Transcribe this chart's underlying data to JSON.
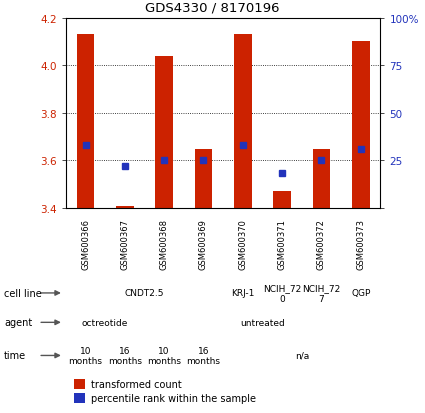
{
  "title": "GDS4330 / 8170196",
  "samples": [
    "GSM600366",
    "GSM600367",
    "GSM600368",
    "GSM600369",
    "GSM600370",
    "GSM600371",
    "GSM600372",
    "GSM600373"
  ],
  "bar_values": [
    4.13,
    3.41,
    4.04,
    3.65,
    4.13,
    3.47,
    3.65,
    4.1
  ],
  "bar_base": 3.4,
  "percentile_values": [
    3.665,
    3.575,
    3.603,
    3.603,
    3.665,
    3.548,
    3.603,
    3.648
  ],
  "ylim": [
    3.4,
    4.2
  ],
  "yticks_left": [
    3.4,
    3.6,
    3.8,
    4.0,
    4.2
  ],
  "yticks_right": [
    0,
    25,
    50,
    75,
    100
  ],
  "bar_color": "#cc2200",
  "percentile_color": "#2233bb",
  "cell_line_groups": [
    {
      "label": "CNDT2.5",
      "span": [
        0,
        4
      ],
      "color": "#ddffdd"
    },
    {
      "label": "KRJ-1",
      "span": [
        4,
        5
      ],
      "color": "#99ee99"
    },
    {
      "label": "NCIH_72\n0",
      "span": [
        5,
        6
      ],
      "color": "#99ee99"
    },
    {
      "label": "NCIH_72\n7",
      "span": [
        6,
        7
      ],
      "color": "#99ee99"
    },
    {
      "label": "QGP",
      "span": [
        7,
        8
      ],
      "color": "#33cc33"
    }
  ],
  "agent_groups": [
    {
      "label": "octreotide",
      "span": [
        0,
        2
      ],
      "color": "#bbbbee"
    },
    {
      "label": "untreated",
      "span": [
        2,
        8
      ],
      "color": "#7777cc"
    }
  ],
  "time_groups": [
    {
      "label": "10\nmonths",
      "span": [
        0,
        1
      ],
      "color": "#dd8888"
    },
    {
      "label": "16\nmonths",
      "span": [
        1,
        2
      ],
      "color": "#dd8888"
    },
    {
      "label": "10\nmonths",
      "span": [
        2,
        3
      ],
      "color": "#ddaaaa"
    },
    {
      "label": "16\nmonths",
      "span": [
        3,
        4
      ],
      "color": "#ddaaaa"
    },
    {
      "label": "n/a",
      "span": [
        4,
        8
      ],
      "color": "#f4cccc"
    }
  ],
  "sample_box_color": "#cccccc",
  "row_labels": [
    "cell line",
    "agent",
    "time"
  ],
  "legend_bar_label": "transformed count",
  "legend_pct_label": "percentile rank within the sample",
  "bg_color": "#ffffff",
  "ylabel_left_color": "#cc2200",
  "ylabel_right_color": "#2233bb"
}
